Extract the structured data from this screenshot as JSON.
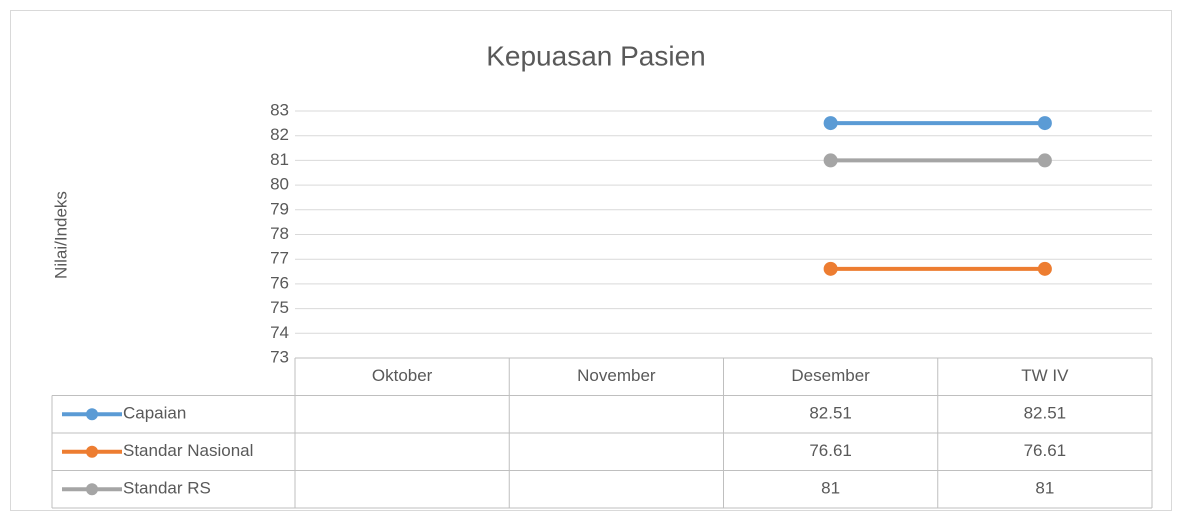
{
  "chart_data": {
    "type": "line",
    "title": "Kepuasan Pasien",
    "y_label": "Nilai/Indeks",
    "categories": [
      "Oktober",
      "November",
      "Desember",
      "TW IV"
    ],
    "series": [
      {
        "name": "Capaian",
        "color": "#5b9bd5",
        "values": [
          null,
          null,
          82.51,
          82.51
        ]
      },
      {
        "name": "Standar Nasional",
        "color": "#ed7d31",
        "values": [
          null,
          null,
          76.61,
          76.61
        ]
      },
      {
        "name": "Standar RS",
        "color": "#a5a5a5",
        "values": [
          null,
          null,
          81,
          81
        ]
      }
    ],
    "ylim": [
      73,
      83
    ],
    "yticks": [
      73,
      74,
      75,
      76,
      77,
      78,
      79,
      80,
      81,
      82,
      83
    ],
    "grid": true
  }
}
